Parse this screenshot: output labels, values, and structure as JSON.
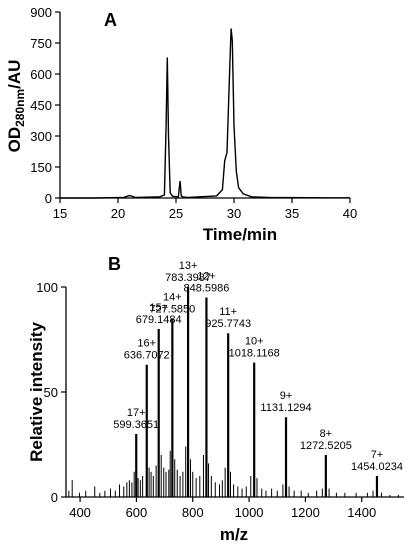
{
  "chart_data": [
    {
      "panel": "A",
      "type": "line",
      "xlabel": "Time/min",
      "ylabel": "OD280nm/AU",
      "ylabel_main": "OD",
      "ylabel_sub": "280nm",
      "ylabel_tail": "/AU",
      "xlim": [
        15,
        40
      ],
      "ylim": [
        0,
        900
      ],
      "xticks": [
        15,
        20,
        25,
        30,
        35,
        40
      ],
      "yticks": [
        0,
        150,
        300,
        450,
        600,
        750,
        900
      ],
      "series": [
        {
          "x": [
            15,
            18,
            20.5,
            21,
            21.5,
            23.6,
            24.0,
            24.15,
            24.25,
            24.35,
            24.5,
            24.7,
            25.2,
            25.35,
            25.45,
            25.6,
            26,
            28.5,
            29.0,
            29.2,
            29.4,
            29.6,
            29.75,
            29.85,
            30.0,
            30.2,
            30.4,
            30.8,
            31.5,
            33,
            35,
            38,
            40
          ],
          "y": [
            0,
            0,
            3,
            12,
            3,
            6,
            15,
            350,
            680,
            300,
            25,
            8,
            6,
            82,
            10,
            5,
            3,
            10,
            40,
            180,
            220,
            580,
            820,
            760,
            350,
            130,
            50,
            20,
            6,
            3,
            2,
            1,
            1
          ]
        }
      ]
    },
    {
      "panel": "B",
      "type": "bar",
      "xlabel": "m/z",
      "ylabel": "Relative intensity",
      "xlim": [
        350,
        1550
      ],
      "ylim": [
        0,
        100
      ],
      "xticks": [
        400,
        600,
        800,
        1000,
        1200,
        1400
      ],
      "yticks": [
        0,
        50,
        100
      ],
      "peaks": [
        {
          "mz": 599.3651,
          "intensity": 30,
          "charge": "17+",
          "mass": "599.3651"
        },
        {
          "mz": 636.7072,
          "intensity": 63,
          "charge": "16+",
          "mass": "636.7072"
        },
        {
          "mz": 679.1484,
          "intensity": 80,
          "charge": "15+",
          "mass": "679.1484"
        },
        {
          "mz": 727.585,
          "intensity": 85,
          "charge": "14+",
          "mass": "727.5850"
        },
        {
          "mz": 783.3987,
          "intensity": 100,
          "charge": "13+",
          "mass": "783.3987"
        },
        {
          "mz": 848.5986,
          "intensity": 95,
          "charge": "12+",
          "mass": "848.5986"
        },
        {
          "mz": 925.7743,
          "intensity": 78,
          "charge": "11+",
          "mass": "925.7743"
        },
        {
          "mz": 1018.1168,
          "intensity": 64,
          "charge": "10+",
          "mass": "1018.1168"
        },
        {
          "mz": 1131.1294,
          "intensity": 38,
          "charge": "9+",
          "mass": "1131.1294"
        },
        {
          "mz": 1272.5205,
          "intensity": 20,
          "charge": "8+",
          "mass": "1272.5205"
        },
        {
          "mz": 1454.0234,
          "intensity": 10,
          "charge": "7+",
          "mass": "1454.0234"
        }
      ],
      "minor_peaks": [
        {
          "mz": 360,
          "intensity": 3
        },
        {
          "mz": 372,
          "intensity": 8
        },
        {
          "mz": 398,
          "intensity": 2
        },
        {
          "mz": 420,
          "intensity": 3
        },
        {
          "mz": 452,
          "intensity": 5
        },
        {
          "mz": 470,
          "intensity": 2
        },
        {
          "mz": 488,
          "intensity": 3
        },
        {
          "mz": 508,
          "intensity": 4
        },
        {
          "mz": 525,
          "intensity": 3
        },
        {
          "mz": 540,
          "intensity": 6
        },
        {
          "mz": 555,
          "intensity": 5
        },
        {
          "mz": 566,
          "intensity": 7
        },
        {
          "mz": 575,
          "intensity": 8
        },
        {
          "mz": 584,
          "intensity": 7
        },
        {
          "mz": 592,
          "intensity": 12
        },
        {
          "mz": 606,
          "intensity": 9
        },
        {
          "mz": 614,
          "intensity": 8
        },
        {
          "mz": 622,
          "intensity": 10
        },
        {
          "mz": 645,
          "intensity": 14
        },
        {
          "mz": 652,
          "intensity": 12
        },
        {
          "mz": 660,
          "intensity": 10
        },
        {
          "mz": 670,
          "intensity": 15
        },
        {
          "mz": 688,
          "intensity": 20
        },
        {
          "mz": 697,
          "intensity": 14
        },
        {
          "mz": 705,
          "intensity": 12
        },
        {
          "mz": 715,
          "intensity": 13
        },
        {
          "mz": 720,
          "intensity": 22
        },
        {
          "mz": 736,
          "intensity": 18
        },
        {
          "mz": 745,
          "intensity": 13
        },
        {
          "mz": 755,
          "intensity": 10
        },
        {
          "mz": 765,
          "intensity": 12
        },
        {
          "mz": 775,
          "intensity": 24
        },
        {
          "mz": 792,
          "intensity": 18
        },
        {
          "mz": 800,
          "intensity": 12
        },
        {
          "mz": 812,
          "intensity": 9
        },
        {
          "mz": 825,
          "intensity": 10
        },
        {
          "mz": 838,
          "intensity": 20
        },
        {
          "mz": 856,
          "intensity": 16
        },
        {
          "mz": 866,
          "intensity": 10
        },
        {
          "mz": 880,
          "intensity": 7
        },
        {
          "mz": 895,
          "intensity": 6
        },
        {
          "mz": 905,
          "intensity": 8
        },
        {
          "mz": 915,
          "intensity": 14
        },
        {
          "mz": 934,
          "intensity": 12
        },
        {
          "mz": 945,
          "intensity": 6
        },
        {
          "mz": 960,
          "intensity": 5
        },
        {
          "mz": 975,
          "intensity": 4
        },
        {
          "mz": 990,
          "intensity": 5
        },
        {
          "mz": 1006,
          "intensity": 10
        },
        {
          "mz": 1028,
          "intensity": 9
        },
        {
          "mz": 1045,
          "intensity": 4
        },
        {
          "mz": 1060,
          "intensity": 3
        },
        {
          "mz": 1080,
          "intensity": 4
        },
        {
          "mz": 1100,
          "intensity": 3
        },
        {
          "mz": 1120,
          "intensity": 6
        },
        {
          "mz": 1142,
          "intensity": 5
        },
        {
          "mz": 1160,
          "intensity": 3
        },
        {
          "mz": 1185,
          "intensity": 3
        },
        {
          "mz": 1210,
          "intensity": 2
        },
        {
          "mz": 1240,
          "intensity": 3
        },
        {
          "mz": 1260,
          "intensity": 4
        },
        {
          "mz": 1284,
          "intensity": 4
        },
        {
          "mz": 1310,
          "intensity": 2
        },
        {
          "mz": 1340,
          "intensity": 2
        },
        {
          "mz": 1380,
          "intensity": 2
        },
        {
          "mz": 1420,
          "intensity": 2
        },
        {
          "mz": 1440,
          "intensity": 3
        },
        {
          "mz": 1470,
          "intensity": 2
        },
        {
          "mz": 1500,
          "intensity": 1
        },
        {
          "mz": 1530,
          "intensity": 1
        }
      ]
    }
  ]
}
